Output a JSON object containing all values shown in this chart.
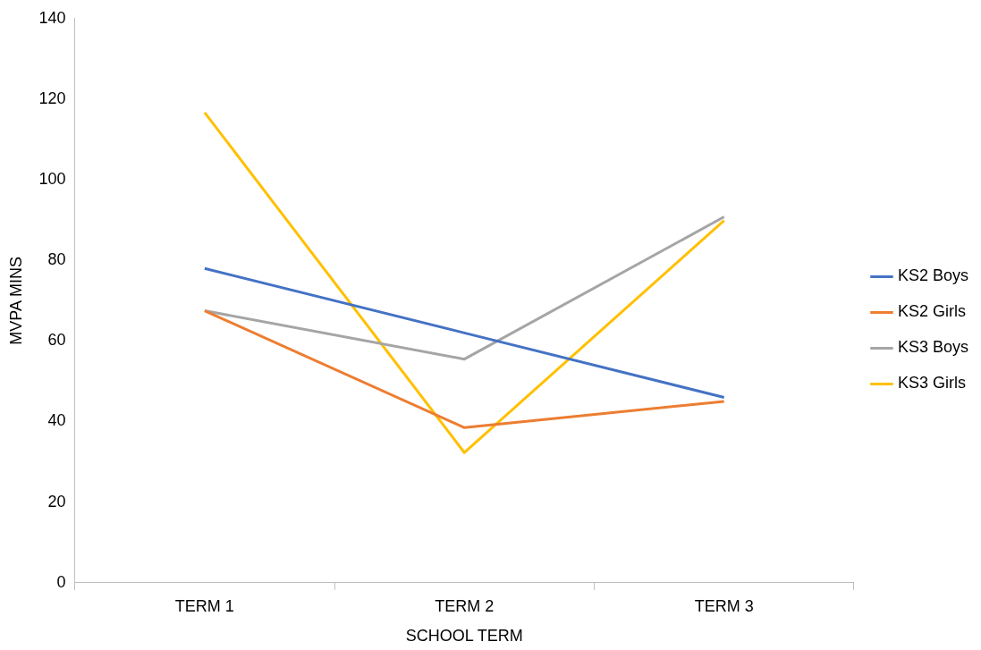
{
  "chart_data": {
    "type": "line",
    "xlabel": "SCHOOL TERM",
    "ylabel": "MVPA MINS",
    "categories": [
      "TERM 1",
      "TERM 2",
      "TERM 3"
    ],
    "series": [
      {
        "name": "KS2 Boys",
        "color": "#4472c4",
        "values": [
          78,
          62,
          46
        ]
      },
      {
        "name": "KS2 Girls",
        "color": "#ed7d31",
        "values": [
          67.5,
          38.5,
          45
        ]
      },
      {
        "name": "KS3 Boys",
        "color": "#a5a5a5",
        "values": [
          67.5,
          55.5,
          90.8
        ]
      },
      {
        "name": "KS3 Girls",
        "color": "#ffc000",
        "values": [
          116.7,
          32.3,
          89.9
        ]
      }
    ],
    "ylim": [
      0,
      140
    ],
    "yticks": [
      0,
      20,
      40,
      60,
      80,
      100,
      120,
      140
    ],
    "legend": "right",
    "marker": "none",
    "line_style": "solid"
  }
}
